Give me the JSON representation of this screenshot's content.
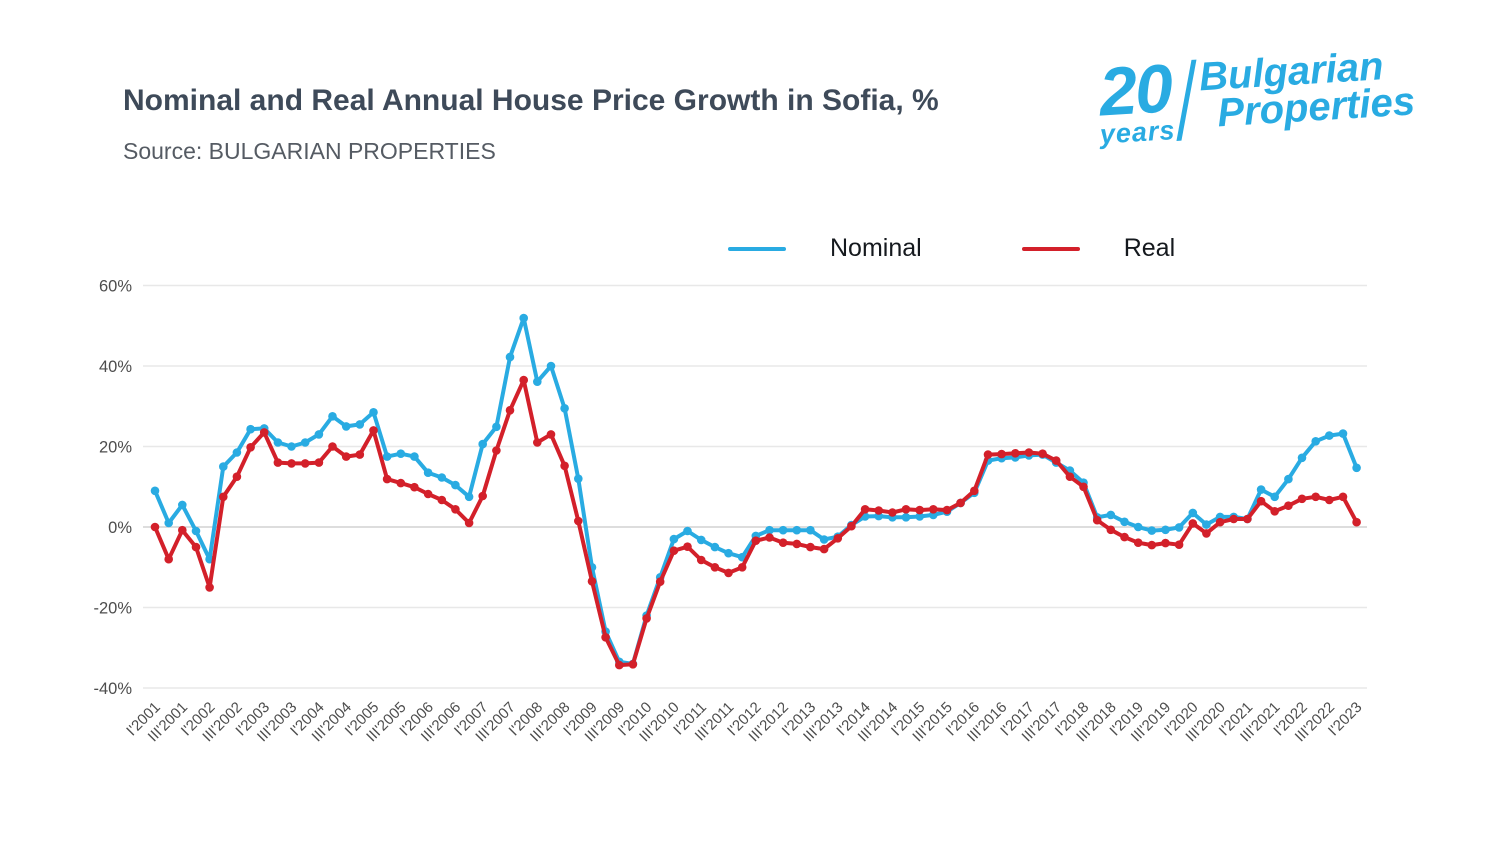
{
  "header": {
    "title": "Nominal and Real Annual House Price Growth in Sofia, %",
    "subtitle": "Source: BULGARIAN PROPERTIES"
  },
  "logo": {
    "number": "20",
    "years": "years",
    "name_top": "Bulgarian",
    "name_bottom": "Properties",
    "color": "#29abe2"
  },
  "chart_data": {
    "type": "line",
    "title": "Nominal and Real Annual House Price Growth in Sofia, %",
    "xlabel": "",
    "ylabel": "",
    "grid": true,
    "legend_position": "top",
    "y_axis": {
      "min": -40,
      "max": 60,
      "ticks": [
        60,
        40,
        20,
        0,
        -20,
        -40
      ],
      "tick_labels": [
        "60%",
        "40%",
        "20%",
        "0%",
        "-20%",
        "-40%"
      ]
    },
    "x_tick_labels": [
      "I'2001",
      "III'2001",
      "I'2002",
      "III'2002",
      "I'2003",
      "III'2003",
      "I'2004",
      "III'2004",
      "I'2005",
      "III'2005",
      "I'2006",
      "III'2006",
      "I'2007",
      "III'2007",
      "I'2008",
      "III'2008",
      "I'2009",
      "III'2009",
      "I'2010",
      "III'2010",
      "I'2011",
      "III'2011",
      "I'2012",
      "III'2012",
      "I'2013",
      "III'2013",
      "I'2014",
      "III'2014",
      "I'2015",
      "III'2015",
      "I'2016",
      "III'2016",
      "I'2017",
      "III'2017",
      "I'2018",
      "III'2018",
      "I'2019",
      "III'2019",
      "I'2020",
      "III'2020",
      "I'2021",
      "III'2021",
      "I'2022",
      "III'2022",
      "I'2023"
    ],
    "x_points_per_label": 2,
    "series": [
      {
        "name": "Nominal",
        "color": "#29abe2",
        "values": [
          9,
          1,
          5.5,
          -1,
          -8,
          15,
          18.5,
          24.3,
          24.5,
          21,
          20,
          21,
          23,
          27.5,
          25,
          25.5,
          28.5,
          17.5,
          18.2,
          17.5,
          13.5,
          12.3,
          10.4,
          7.5,
          20.6,
          24.9,
          42.2,
          51.9,
          36.1,
          40,
          29.5,
          12,
          -10,
          -26,
          -33.5,
          -34,
          -22,
          -12.5,
          -3,
          -1,
          -3.2,
          -5,
          -6.5,
          -7.5,
          -2.2,
          -0.8,
          -0.8,
          -0.8,
          -0.8,
          -3.1,
          -2.4,
          0.5,
          2.6,
          2.7,
          2.4,
          2.4,
          2.6,
          3,
          3.8,
          6,
          8.5,
          16.5,
          17.1,
          17.3,
          17.8,
          18,
          16,
          14,
          11,
          2.4,
          3,
          1.3,
          0,
          -0.9,
          -0.7,
          -0.1,
          3.5,
          0.6,
          2.5,
          2.5,
          2,
          9.3,
          7.5,
          11.9,
          17.2,
          21.3,
          22.7,
          23.2,
          14.7
        ]
      },
      {
        "name": "Real",
        "color": "#d3202a",
        "values": [
          0,
          -8,
          -0.8,
          -5,
          -15,
          7.5,
          12.5,
          19.8,
          23.5,
          16,
          15.8,
          15.8,
          16,
          20,
          17.5,
          18,
          24,
          11.9,
          10.9,
          9.9,
          8.2,
          6.7,
          4.4,
          1,
          7.7,
          19,
          29,
          36.5,
          21,
          23,
          15.2,
          1.5,
          -13.5,
          -27.4,
          -34.3,
          -34.1,
          -22.7,
          -13.6,
          -5.9,
          -4.9,
          -8.2,
          -10,
          -11.4,
          -10,
          -3.4,
          -2.6,
          -3.9,
          -4.2,
          -5,
          -5.5,
          -2.8,
          0.2,
          4.4,
          4.1,
          3.6,
          4.4,
          4.2,
          4.4,
          4.2,
          6,
          9,
          18,
          18.1,
          18.3,
          18.5,
          18.2,
          16.5,
          12.5,
          10,
          1.7,
          -0.7,
          -2.5,
          -3.9,
          -4.5,
          -4,
          -4.4,
          0.9,
          -1.6,
          1.2,
          2,
          2,
          6.4,
          3.9,
          5.3,
          7,
          7.5,
          6.7,
          7.5,
          1.2
        ]
      }
    ]
  }
}
